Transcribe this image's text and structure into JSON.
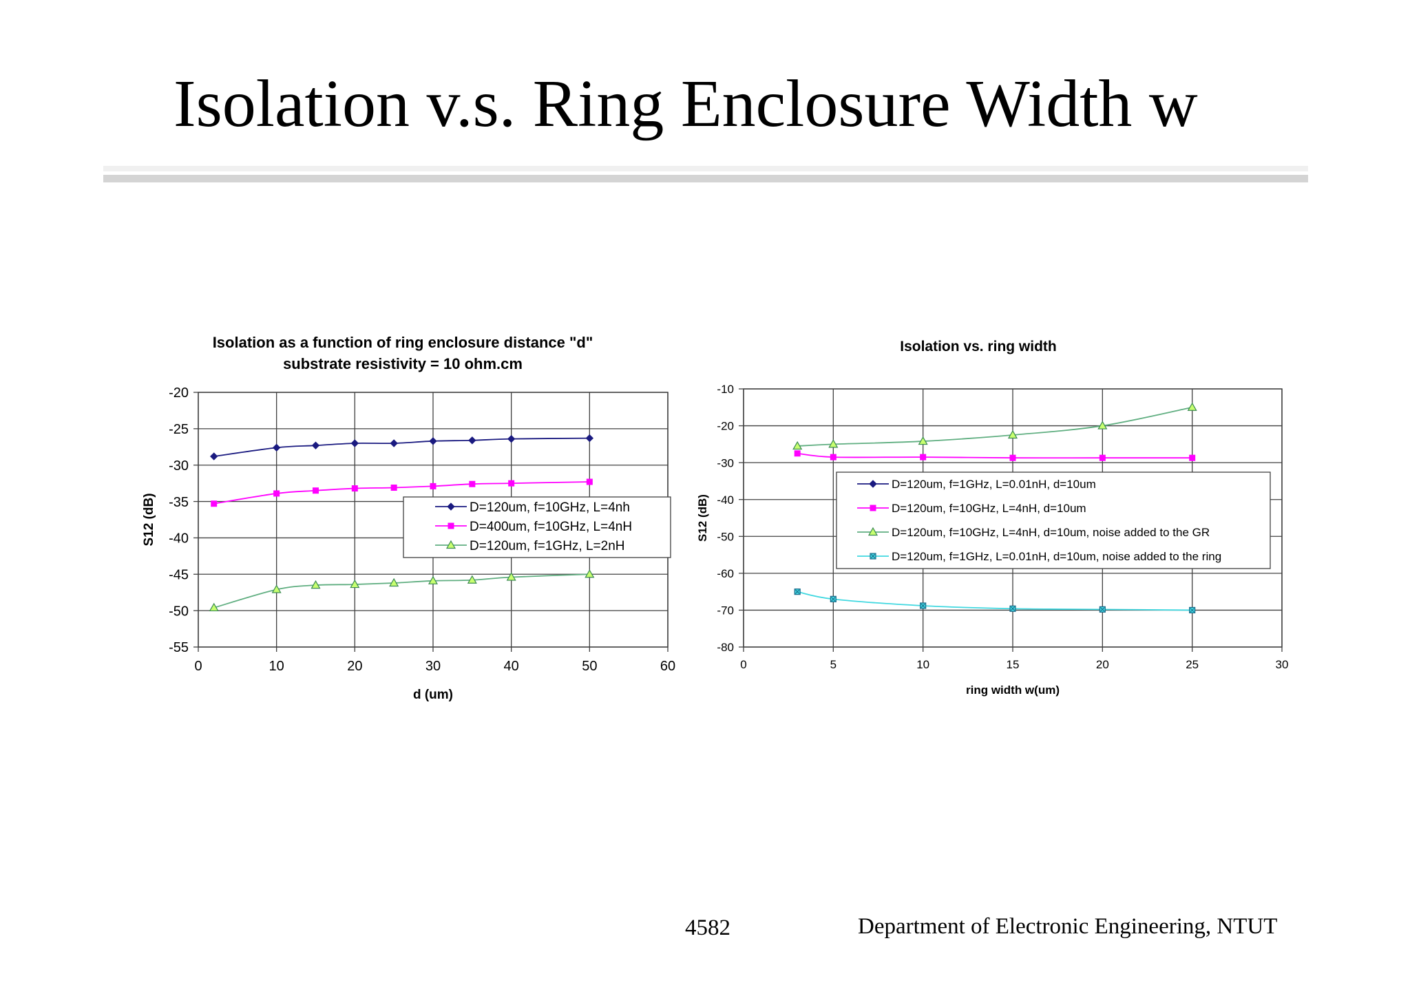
{
  "slide": {
    "title": "Isolation v.s. Ring Enclosure Width w",
    "page_number": "4582",
    "department": "Department of Electronic Engineering, NTUT"
  },
  "colors": {
    "series_navy": "#1a1a80",
    "series_magenta": "#ff00ff",
    "series_green": "#5fae80",
    "series_cyan": "#40d8e0",
    "marker_green_fill": "#c8ff70",
    "grid": "#404040"
  },
  "chart_data": [
    {
      "type": "line",
      "title": "Isolation as a function of ring enclosure distance \"d\"",
      "subtitle": "substrate resistivity = 10 ohm.cm",
      "xlabel": "d (um)",
      "ylabel": "S12 (dB)",
      "xlim": [
        0,
        60
      ],
      "ylim": [
        -55,
        -20
      ],
      "xticks": [
        0,
        10,
        20,
        30,
        40,
        50,
        60
      ],
      "yticks": [
        -20,
        -25,
        -30,
        -35,
        -40,
        -45,
        -50,
        -55
      ],
      "grid": true,
      "legend_position": "center-right",
      "series": [
        {
          "name": "D=120um, f=10GHz, L=4nh",
          "marker": "diamond",
          "x": [
            2,
            10,
            15,
            20,
            25,
            30,
            35,
            40,
            50
          ],
          "y": [
            -28.8,
            -27.6,
            -27.3,
            -27.0,
            -27.0,
            -26.7,
            -26.6,
            -26.4,
            -26.3
          ]
        },
        {
          "name": "D=400um, f=10GHz, L=4nH",
          "marker": "square",
          "x": [
            2,
            10,
            15,
            20,
            25,
            30,
            35,
            40,
            50
          ],
          "y": [
            -35.3,
            -33.9,
            -33.5,
            -33.2,
            -33.1,
            -32.9,
            -32.6,
            -32.5,
            -32.3
          ]
        },
        {
          "name": "D=120um, f=1GHz, L=2nH",
          "marker": "triangle",
          "x": [
            2,
            10,
            15,
            20,
            25,
            30,
            35,
            40,
            50
          ],
          "y": [
            -49.6,
            -47.1,
            -46.5,
            -46.4,
            -46.2,
            -45.9,
            -45.8,
            -45.4,
            -45.0
          ]
        }
      ]
    },
    {
      "type": "line",
      "title": "Isolation vs. ring width",
      "xlabel": "ring width w(um)",
      "ylabel": "S12 (dB)",
      "xlim": [
        0,
        30
      ],
      "ylim": [
        -80,
        -10
      ],
      "xticks": [
        0,
        5,
        10,
        15,
        20,
        25,
        30
      ],
      "yticks": [
        -10,
        -20,
        -30,
        -40,
        -50,
        -60,
        -70,
        -80
      ],
      "grid": true,
      "legend_position": "center",
      "series": [
        {
          "name": "D=120um, f=1GHz, L=0.01nH, d=10um",
          "marker": "diamond",
          "x": [],
          "y": []
        },
        {
          "name": "D=120um, f=10GHz, L=4nH, d=10um",
          "marker": "square",
          "x": [
            3,
            5,
            10,
            15,
            20,
            25
          ],
          "y": [
            -27.5,
            -28.5,
            -28.5,
            -28.7,
            -28.7,
            -28.7
          ]
        },
        {
          "name": "D=120um, f=10GHz, L=4nH, d=10um, noise added to the GR",
          "marker": "triangle",
          "x": [
            3,
            5,
            10,
            15,
            20,
            25
          ],
          "y": [
            -25.5,
            -25.0,
            -24.2,
            -22.5,
            -20.0,
            -15.0
          ]
        },
        {
          "name": "D=120um, f=1GHz, L=0.01nH, d=10um, noise added to the ring",
          "marker": "cross",
          "x": [
            3,
            5,
            10,
            15,
            20,
            25
          ],
          "y": [
            -65.0,
            -67.0,
            -68.8,
            -69.6,
            -69.8,
            -70.0
          ]
        }
      ]
    }
  ]
}
